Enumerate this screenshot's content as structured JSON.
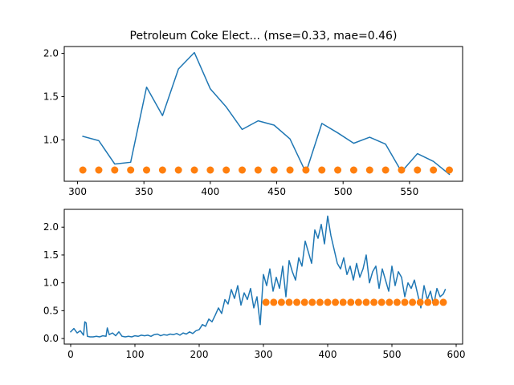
{
  "chart_data": [
    {
      "type": "line",
      "title": "Petroleum Coke Elect... (mse=0.33, mae=0.46)",
      "xlabel": "",
      "ylabel": "",
      "xlim": [
        290,
        590
      ],
      "ylim": [
        0.52,
        2.08
      ],
      "xticks": [
        300,
        350,
        400,
        450,
        500,
        550
      ],
      "yticks": [
        1.0,
        1.5,
        2.0
      ],
      "ytick_labels": [
        "1.0",
        "1.5",
        "2.0"
      ],
      "grid": false,
      "series": [
        {
          "kind": "line",
          "color": "#1f77b4",
          "x": [
            304,
            316,
            328,
            340,
            352,
            364,
            376,
            388,
            400,
            412,
            424,
            436,
            448,
            460,
            472,
            484,
            496,
            508,
            520,
            532,
            544,
            556,
            568,
            580
          ],
          "y": [
            1.04,
            0.99,
            0.72,
            0.74,
            1.61,
            1.28,
            1.82,
            2.01,
            1.59,
            1.38,
            1.12,
            1.22,
            1.17,
            1.01,
            0.62,
            1.19,
            1.08,
            0.96,
            1.03,
            0.95,
            0.63,
            0.84,
            0.75,
            0.6
          ]
        },
        {
          "kind": "scatter",
          "color": "#ff7f0e",
          "x": [
            304,
            316,
            328,
            340,
            352,
            364,
            376,
            388,
            400,
            412,
            424,
            436,
            448,
            460,
            472,
            484,
            496,
            508,
            520,
            532,
            544,
            556,
            568,
            580
          ],
          "y": [
            0.65,
            0.65,
            0.65,
            0.65,
            0.65,
            0.65,
            0.65,
            0.65,
            0.65,
            0.65,
            0.65,
            0.65,
            0.65,
            0.65,
            0.65,
            0.65,
            0.65,
            0.65,
            0.65,
            0.65,
            0.65,
            0.65,
            0.65,
            0.65
          ]
        }
      ]
    },
    {
      "type": "line",
      "title": "",
      "xlabel": "",
      "ylabel": "",
      "xlim": [
        -10,
        610
      ],
      "ylim": [
        -0.1,
        2.32
      ],
      "xticks": [
        0,
        100,
        200,
        300,
        400,
        500,
        600
      ],
      "yticks": [
        0.0,
        0.5,
        1.0,
        1.5,
        2.0
      ],
      "ytick_labels": [
        "0.0",
        "0.5",
        "1.0",
        "1.5",
        "2.0"
      ],
      "grid": false,
      "series": [
        {
          "kind": "line",
          "color": "#1f77b4",
          "x": [
            0,
            5,
            10,
            15,
            20,
            22,
            24,
            26,
            30,
            35,
            40,
            45,
            50,
            55,
            57,
            60,
            65,
            70,
            75,
            80,
            85,
            90,
            95,
            100,
            105,
            110,
            115,
            120,
            125,
            130,
            135,
            140,
            145,
            150,
            155,
            160,
            165,
            170,
            175,
            180,
            185,
            190,
            195,
            200,
            205,
            210,
            215,
            220,
            225,
            230,
            235,
            240,
            245,
            250,
            255,
            260,
            265,
            270,
            275,
            280,
            285,
            290,
            295,
            300,
            305,
            310,
            315,
            320,
            325,
            330,
            335,
            340,
            345,
            350,
            355,
            360,
            365,
            370,
            375,
            380,
            385,
            390,
            395,
            400,
            405,
            410,
            415,
            420,
            425,
            430,
            435,
            440,
            445,
            450,
            455,
            460,
            465,
            470,
            475,
            480,
            485,
            490,
            495,
            500,
            505,
            510,
            515,
            520,
            525,
            530,
            535,
            540,
            545,
            550,
            555,
            560,
            565,
            570,
            575,
            580,
            583
          ],
          "y": [
            0.12,
            0.18,
            0.1,
            0.14,
            0.06,
            0.3,
            0.28,
            0.04,
            0.03,
            0.03,
            0.04,
            0.03,
            0.05,
            0.04,
            0.19,
            0.07,
            0.1,
            0.05,
            0.12,
            0.04,
            0.03,
            0.04,
            0.03,
            0.05,
            0.04,
            0.06,
            0.05,
            0.06,
            0.04,
            0.07,
            0.08,
            0.05,
            0.07,
            0.06,
            0.08,
            0.07,
            0.09,
            0.06,
            0.1,
            0.08,
            0.12,
            0.09,
            0.14,
            0.16,
            0.25,
            0.22,
            0.35,
            0.3,
            0.42,
            0.55,
            0.45,
            0.7,
            0.62,
            0.88,
            0.72,
            0.95,
            0.6,
            0.82,
            0.7,
            0.9,
            0.55,
            0.75,
            0.25,
            1.15,
            0.95,
            1.25,
            0.85,
            1.1,
            0.9,
            1.3,
            0.75,
            1.4,
            1.2,
            1.05,
            1.45,
            1.3,
            1.75,
            1.55,
            1.35,
            1.95,
            1.8,
            2.05,
            1.7,
            2.2,
            1.85,
            1.6,
            1.35,
            1.25,
            1.45,
            1.15,
            1.3,
            1.05,
            1.35,
            1.1,
            1.25,
            1.5,
            1.0,
            1.2,
            1.3,
            0.9,
            1.25,
            1.05,
            0.85,
            1.3,
            0.95,
            1.2,
            1.1,
            0.75,
            1.0,
            0.9,
            1.05,
            0.8,
            0.55,
            0.95,
            0.7,
            0.85,
            0.6,
            0.9,
            0.75,
            0.8,
            0.88
          ]
        },
        {
          "kind": "scatter",
          "color": "#ff7f0e",
          "x": [
            304,
            316,
            328,
            340,
            352,
            364,
            376,
            388,
            400,
            412,
            424,
            436,
            448,
            460,
            472,
            484,
            496,
            508,
            520,
            532,
            544,
            556,
            568,
            580
          ],
          "y": [
            0.65,
            0.65,
            0.65,
            0.65,
            0.65,
            0.65,
            0.65,
            0.65,
            0.65,
            0.65,
            0.65,
            0.65,
            0.65,
            0.65,
            0.65,
            0.65,
            0.65,
            0.65,
            0.65,
            0.65,
            0.65,
            0.65,
            0.65,
            0.65
          ]
        }
      ]
    }
  ]
}
